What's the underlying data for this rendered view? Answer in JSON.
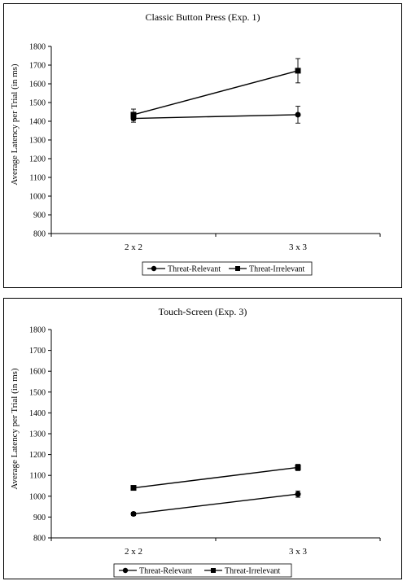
{
  "chart_data": [
    {
      "type": "line",
      "title": "Classic Button Press (Exp. 1)",
      "ylabel": "Average Latency per Trial (in ms)",
      "xlabel": "",
      "categories": [
        "2 x 2",
        "3 x 3"
      ],
      "ylim": [
        800,
        1800
      ],
      "yticks": [
        800,
        900,
        1000,
        1100,
        1200,
        1300,
        1400,
        1500,
        1600,
        1700,
        1800
      ],
      "grid": false,
      "legend_position": "bottom",
      "series": [
        {
          "name": "Threat-Relevant",
          "marker": "circle",
          "values": [
            1415,
            1435
          ],
          "errors": [
            20,
            45
          ]
        },
        {
          "name": "Threat-Irrelevant",
          "marker": "square",
          "values": [
            1435,
            1670
          ],
          "errors": [
            30,
            65
          ]
        }
      ]
    },
    {
      "type": "line",
      "title": "Touch-Screen (Exp. 3)",
      "ylabel": "Average Latency per Trial (in ms)",
      "xlabel": "",
      "categories": [
        "2 x 2",
        "3 x 3"
      ],
      "ylim": [
        800,
        1800
      ],
      "yticks": [
        800,
        900,
        1000,
        1100,
        1200,
        1300,
        1400,
        1500,
        1600,
        1700,
        1800
      ],
      "grid": false,
      "legend_position": "bottom",
      "series": [
        {
          "name": "Threat-Relevant",
          "marker": "circle",
          "values": [
            915,
            1010
          ],
          "errors": [
            8,
            15
          ]
        },
        {
          "name": "Threat-Irrelevant",
          "marker": "square",
          "values": [
            1040,
            1138
          ],
          "errors": [
            8,
            15
          ]
        }
      ]
    }
  ]
}
